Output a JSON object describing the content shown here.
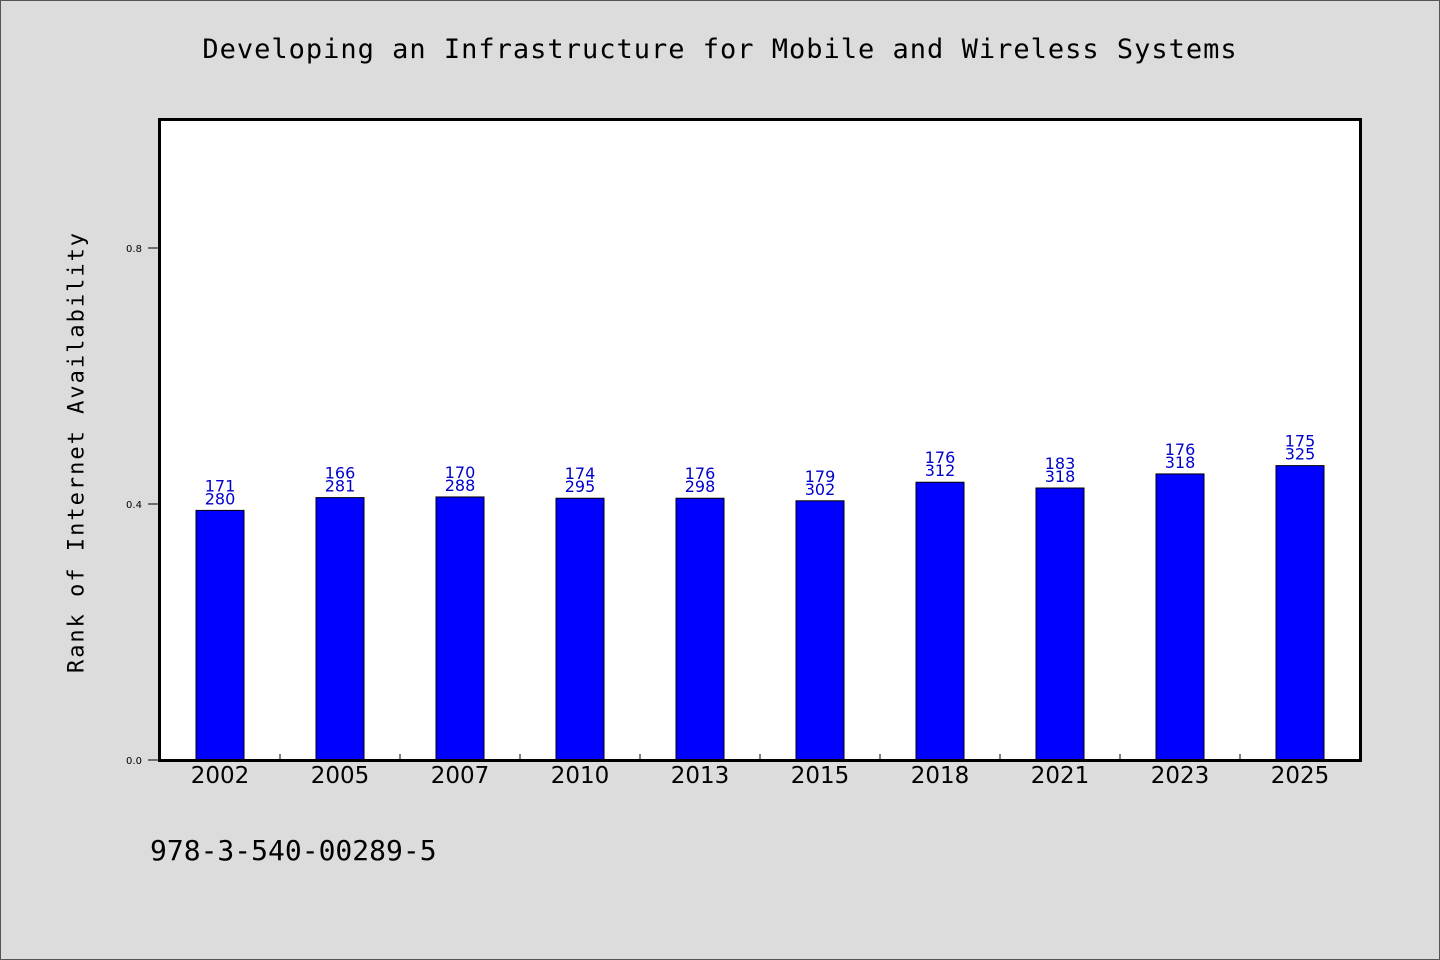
{
  "chart_data": {
    "type": "bar",
    "title": "Developing an Infrastructure for Mobile and Wireless Systems",
    "xlabel": "",
    "ylabel": "Rank of Internet Availability",
    "categories": [
      "2002",
      "2005",
      "2007",
      "2010",
      "2013",
      "2015",
      "2018",
      "2021",
      "2023",
      "2025"
    ],
    "values": [
      0.39,
      0.41,
      0.411,
      0.409,
      0.409,
      0.405,
      0.434,
      0.425,
      0.447,
      0.46
    ],
    "labels_top": [
      "171",
      "166",
      "170",
      "174",
      "176",
      "179",
      "176",
      "183",
      "176",
      "175"
    ],
    "labels_bottom": [
      "280",
      "281",
      "288",
      "295",
      "298",
      "302",
      "312",
      "318",
      "318",
      "325"
    ],
    "ylim": [
      0,
      1.0
    ],
    "yticks": [
      0.0,
      0.4,
      0.8
    ],
    "ytick_labels": [
      "0.0",
      "0.4",
      "0.8"
    ],
    "grid": false,
    "bar_color": "#0000ff",
    "label_color": "#0000cc"
  },
  "footer": {
    "isbn": "978-3-540-00289-5"
  }
}
